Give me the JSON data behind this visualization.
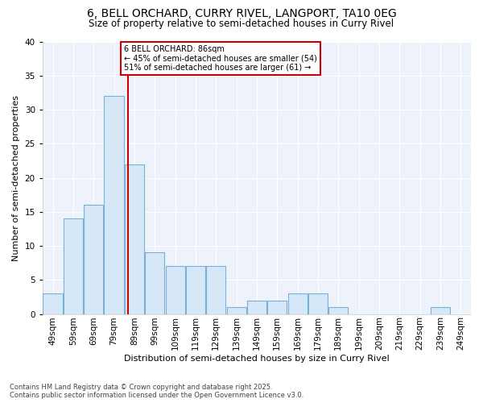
{
  "title": "6, BELL ORCHARD, CURRY RIVEL, LANGPORT, TA10 0EG",
  "subtitle": "Size of property relative to semi-detached houses in Curry Rivel",
  "xlabel": "Distribution of semi-detached houses by size in Curry Rivel",
  "ylabel": "Number of semi-detached properties",
  "bar_values": [
    3,
    14,
    16,
    32,
    22,
    9,
    7,
    7,
    7,
    1,
    2,
    2,
    3,
    3,
    1,
    0,
    0,
    0,
    0,
    1
  ],
  "bin_labels": [
    "49sqm",
    "59sqm",
    "69sqm",
    "79sqm",
    "89sqm",
    "99sqm",
    "109sqm",
    "119sqm",
    "129sqm",
    "139sqm",
    "149sqm",
    "159sqm",
    "169sqm",
    "179sqm",
    "189sqm",
    "199sqm",
    "209sqm",
    "219sqm",
    "229sqm",
    "239sqm",
    "249sqm"
  ],
  "bar_color": "#d6e8f7",
  "bar_edge_color": "#7ab0d8",
  "property_value": 86,
  "property_label": "6 BELL ORCHARD: 86sqm",
  "pct_smaller": 45,
  "pct_larger": 51,
  "n_smaller": 54,
  "n_larger": 61,
  "vline_color": "#cc0000",
  "annotation_box_color": "#cc0000",
  "background_color": "#ffffff",
  "plot_bg_color": "#eef3fb",
  "grid_color": "#ffffff",
  "ylim": [
    0,
    40
  ],
  "yticks": [
    0,
    5,
    10,
    15,
    20,
    25,
    30,
    35,
    40
  ],
  "footer": "Contains HM Land Registry data © Crown copyright and database right 2025.\nContains public sector information licensed under the Open Government Licence v3.0.",
  "title_fontsize": 10,
  "subtitle_fontsize": 8.5,
  "axis_label_fontsize": 8,
  "tick_fontsize": 7.5,
  "footer_fontsize": 6
}
